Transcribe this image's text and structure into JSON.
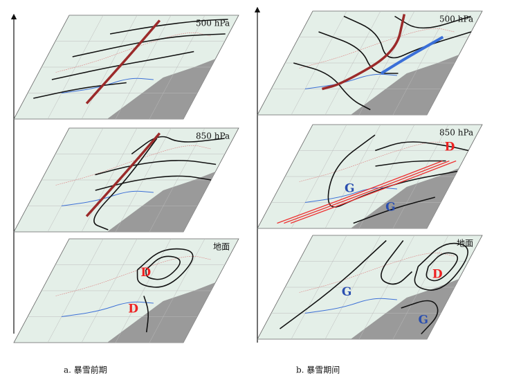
{
  "panels": [
    {
      "caption": "a. 暴雪前期",
      "layers": [
        {
          "level": "500 hPa"
        },
        {
          "level": "850 hPa"
        },
        {
          "level": "地面",
          "labels": [
            "D",
            "D"
          ]
        }
      ]
    },
    {
      "caption": "b. 暴雪期间",
      "layers": [
        {
          "level": "500 hPa"
        },
        {
          "level": "850 hPa",
          "labels": [
            "D",
            "G",
            "G"
          ]
        },
        {
          "level": "地面",
          "labels": [
            "G",
            "D",
            "G"
          ]
        }
      ]
    }
  ]
}
